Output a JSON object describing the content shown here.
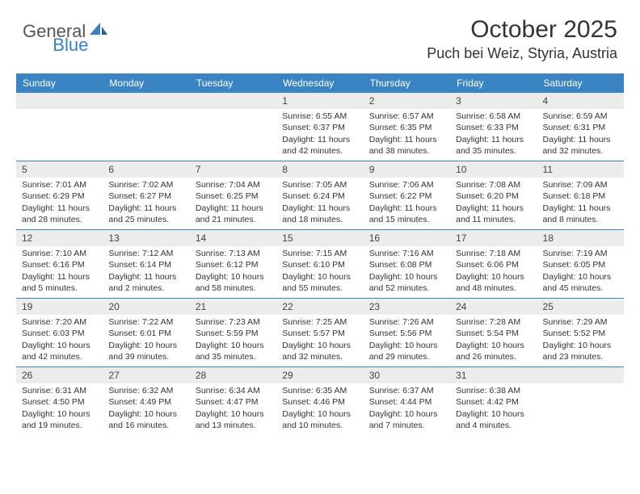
{
  "brand": {
    "part1": "General",
    "part2": "Blue"
  },
  "title": "October 2025",
  "location": "Puch bei Weiz, Styria, Austria",
  "colors": {
    "header_bg": "#3b84c4",
    "daynum_bg": "#ececec",
    "week_border": "#3b84c4",
    "text": "#333333",
    "logo_gray": "#555555",
    "logo_blue": "#3a7fc4"
  },
  "weekdays": [
    "Sunday",
    "Monday",
    "Tuesday",
    "Wednesday",
    "Thursday",
    "Friday",
    "Saturday"
  ],
  "weeks": [
    [
      {
        "n": "",
        "sr": "",
        "ss": "",
        "dl": ""
      },
      {
        "n": "",
        "sr": "",
        "ss": "",
        "dl": ""
      },
      {
        "n": "",
        "sr": "",
        "ss": "",
        "dl": ""
      },
      {
        "n": "1",
        "sr": "Sunrise: 6:55 AM",
        "ss": "Sunset: 6:37 PM",
        "dl": "Daylight: 11 hours and 42 minutes."
      },
      {
        "n": "2",
        "sr": "Sunrise: 6:57 AM",
        "ss": "Sunset: 6:35 PM",
        "dl": "Daylight: 11 hours and 38 minutes."
      },
      {
        "n": "3",
        "sr": "Sunrise: 6:58 AM",
        "ss": "Sunset: 6:33 PM",
        "dl": "Daylight: 11 hours and 35 minutes."
      },
      {
        "n": "4",
        "sr": "Sunrise: 6:59 AM",
        "ss": "Sunset: 6:31 PM",
        "dl": "Daylight: 11 hours and 32 minutes."
      }
    ],
    [
      {
        "n": "5",
        "sr": "Sunrise: 7:01 AM",
        "ss": "Sunset: 6:29 PM",
        "dl": "Daylight: 11 hours and 28 minutes."
      },
      {
        "n": "6",
        "sr": "Sunrise: 7:02 AM",
        "ss": "Sunset: 6:27 PM",
        "dl": "Daylight: 11 hours and 25 minutes."
      },
      {
        "n": "7",
        "sr": "Sunrise: 7:04 AM",
        "ss": "Sunset: 6:25 PM",
        "dl": "Daylight: 11 hours and 21 minutes."
      },
      {
        "n": "8",
        "sr": "Sunrise: 7:05 AM",
        "ss": "Sunset: 6:24 PM",
        "dl": "Daylight: 11 hours and 18 minutes."
      },
      {
        "n": "9",
        "sr": "Sunrise: 7:06 AM",
        "ss": "Sunset: 6:22 PM",
        "dl": "Daylight: 11 hours and 15 minutes."
      },
      {
        "n": "10",
        "sr": "Sunrise: 7:08 AM",
        "ss": "Sunset: 6:20 PM",
        "dl": "Daylight: 11 hours and 11 minutes."
      },
      {
        "n": "11",
        "sr": "Sunrise: 7:09 AM",
        "ss": "Sunset: 6:18 PM",
        "dl": "Daylight: 11 hours and 8 minutes."
      }
    ],
    [
      {
        "n": "12",
        "sr": "Sunrise: 7:10 AM",
        "ss": "Sunset: 6:16 PM",
        "dl": "Daylight: 11 hours and 5 minutes."
      },
      {
        "n": "13",
        "sr": "Sunrise: 7:12 AM",
        "ss": "Sunset: 6:14 PM",
        "dl": "Daylight: 11 hours and 2 minutes."
      },
      {
        "n": "14",
        "sr": "Sunrise: 7:13 AM",
        "ss": "Sunset: 6:12 PM",
        "dl": "Daylight: 10 hours and 58 minutes."
      },
      {
        "n": "15",
        "sr": "Sunrise: 7:15 AM",
        "ss": "Sunset: 6:10 PM",
        "dl": "Daylight: 10 hours and 55 minutes."
      },
      {
        "n": "16",
        "sr": "Sunrise: 7:16 AM",
        "ss": "Sunset: 6:08 PM",
        "dl": "Daylight: 10 hours and 52 minutes."
      },
      {
        "n": "17",
        "sr": "Sunrise: 7:18 AM",
        "ss": "Sunset: 6:06 PM",
        "dl": "Daylight: 10 hours and 48 minutes."
      },
      {
        "n": "18",
        "sr": "Sunrise: 7:19 AM",
        "ss": "Sunset: 6:05 PM",
        "dl": "Daylight: 10 hours and 45 minutes."
      }
    ],
    [
      {
        "n": "19",
        "sr": "Sunrise: 7:20 AM",
        "ss": "Sunset: 6:03 PM",
        "dl": "Daylight: 10 hours and 42 minutes."
      },
      {
        "n": "20",
        "sr": "Sunrise: 7:22 AM",
        "ss": "Sunset: 6:01 PM",
        "dl": "Daylight: 10 hours and 39 minutes."
      },
      {
        "n": "21",
        "sr": "Sunrise: 7:23 AM",
        "ss": "Sunset: 5:59 PM",
        "dl": "Daylight: 10 hours and 35 minutes."
      },
      {
        "n": "22",
        "sr": "Sunrise: 7:25 AM",
        "ss": "Sunset: 5:57 PM",
        "dl": "Daylight: 10 hours and 32 minutes."
      },
      {
        "n": "23",
        "sr": "Sunrise: 7:26 AM",
        "ss": "Sunset: 5:56 PM",
        "dl": "Daylight: 10 hours and 29 minutes."
      },
      {
        "n": "24",
        "sr": "Sunrise: 7:28 AM",
        "ss": "Sunset: 5:54 PM",
        "dl": "Daylight: 10 hours and 26 minutes."
      },
      {
        "n": "25",
        "sr": "Sunrise: 7:29 AM",
        "ss": "Sunset: 5:52 PM",
        "dl": "Daylight: 10 hours and 23 minutes."
      }
    ],
    [
      {
        "n": "26",
        "sr": "Sunrise: 6:31 AM",
        "ss": "Sunset: 4:50 PM",
        "dl": "Daylight: 10 hours and 19 minutes."
      },
      {
        "n": "27",
        "sr": "Sunrise: 6:32 AM",
        "ss": "Sunset: 4:49 PM",
        "dl": "Daylight: 10 hours and 16 minutes."
      },
      {
        "n": "28",
        "sr": "Sunrise: 6:34 AM",
        "ss": "Sunset: 4:47 PM",
        "dl": "Daylight: 10 hours and 13 minutes."
      },
      {
        "n": "29",
        "sr": "Sunrise: 6:35 AM",
        "ss": "Sunset: 4:46 PM",
        "dl": "Daylight: 10 hours and 10 minutes."
      },
      {
        "n": "30",
        "sr": "Sunrise: 6:37 AM",
        "ss": "Sunset: 4:44 PM",
        "dl": "Daylight: 10 hours and 7 minutes."
      },
      {
        "n": "31",
        "sr": "Sunrise: 6:38 AM",
        "ss": "Sunset: 4:42 PM",
        "dl": "Daylight: 10 hours and 4 minutes."
      },
      {
        "n": "",
        "sr": "",
        "ss": "",
        "dl": ""
      }
    ]
  ]
}
